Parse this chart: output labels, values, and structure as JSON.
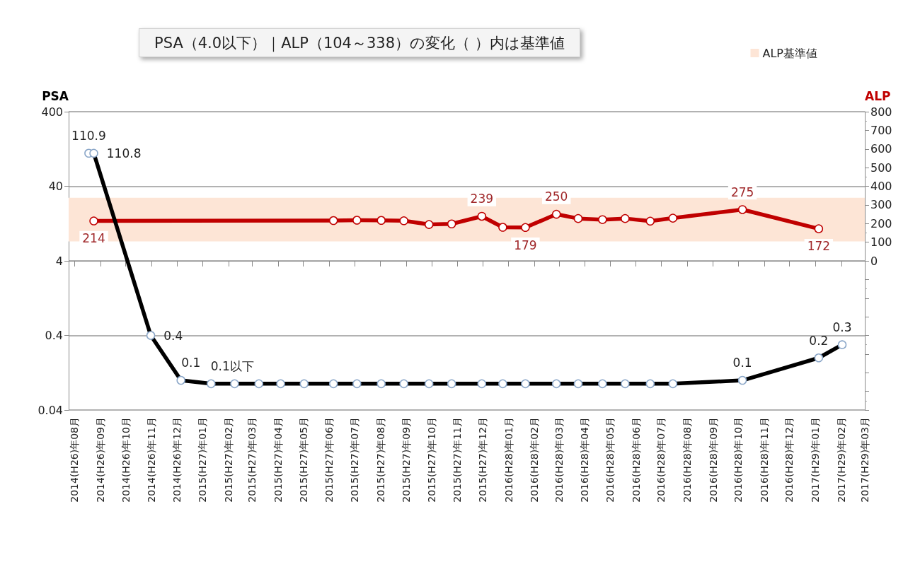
{
  "chart_data": {
    "type": "line",
    "title": "PSA（4.0以下）｜ALP（104～338）の変化（ ）内は基準値",
    "xlim": [
      "2014-07-25",
      "2017-03-01"
    ],
    "xticks": [
      {
        "value": "2014-08-01",
        "label": "2014(H26)年08月"
      },
      {
        "value": "2014-09-01",
        "label": "2014(H26)年09月"
      },
      {
        "value": "2014-10-01",
        "label": "2014(H26)年10月"
      },
      {
        "value": "2014-11-01",
        "label": "2014(H26)年11月"
      },
      {
        "value": "2014-12-01",
        "label": "2014(H26)年12月"
      },
      {
        "value": "2015-01-01",
        "label": "2015(H27)年01月"
      },
      {
        "value": "2015-02-01",
        "label": "2015(H27)年02月"
      },
      {
        "value": "2015-03-01",
        "label": "2015(H27)年03月"
      },
      {
        "value": "2015-04-01",
        "label": "2015(H27)年04月"
      },
      {
        "value": "2015-05-01",
        "label": "2015(H27)年05月"
      },
      {
        "value": "2015-06-01",
        "label": "2015(H27)年06月"
      },
      {
        "value": "2015-07-01",
        "label": "2015(H27)年07月"
      },
      {
        "value": "2015-08-01",
        "label": "2015(H27)年08月"
      },
      {
        "value": "2015-09-01",
        "label": "2015(H27)年09月"
      },
      {
        "value": "2015-10-01",
        "label": "2015(H27)年10月"
      },
      {
        "value": "2015-11-01",
        "label": "2015(H27)年11月"
      },
      {
        "value": "2015-12-01",
        "label": "2015(H27)年12月"
      },
      {
        "value": "2016-01-01",
        "label": "2016(H28)年01月"
      },
      {
        "value": "2016-02-01",
        "label": "2016(H28)年02月"
      },
      {
        "value": "2016-03-01",
        "label": "2016(H28)年03月"
      },
      {
        "value": "2016-04-01",
        "label": "2016(H28)年04月"
      },
      {
        "value": "2016-05-01",
        "label": "2016(H28)年05月"
      },
      {
        "value": "2016-06-01",
        "label": "2016(H28)年06月"
      },
      {
        "value": "2016-07-01",
        "label": "2016(H28)年07月"
      },
      {
        "value": "2016-08-01",
        "label": "2016(H28)年08月"
      },
      {
        "value": "2016-09-01",
        "label": "2016(H28)年09月"
      },
      {
        "value": "2016-10-01",
        "label": "2016(H28)年10月"
      },
      {
        "value": "2016-11-01",
        "label": "2016(H28)年11月"
      },
      {
        "value": "2016-12-01",
        "label": "2016(H28)年12月"
      },
      {
        "value": "2017-01-01",
        "label": "2017(H29)年01月"
      },
      {
        "value": "2017-02-01",
        "label": "2017(H29)年02月"
      },
      {
        "value": "2017-03-01",
        "label": "2017(H29)年03月"
      }
    ],
    "log": "y",
    "ylim": [
      0.04,
      400
    ],
    "yticks": [
      0.04,
      0.4,
      4,
      40,
      400
    ],
    "y2lim": [
      -800,
      800
    ],
    "y2ticks": [
      {
        "value": -800,
        "label": null
      },
      {
        "value": -700,
        "label": null
      },
      {
        "value": -600,
        "label": null
      },
      {
        "value": -500,
        "label": null
      },
      {
        "value": -400,
        "label": null
      },
      {
        "value": -300,
        "label": null
      },
      {
        "value": -200,
        "label": null
      },
      {
        "value": -100,
        "label": null
      },
      0,
      100,
      200,
      300,
      400,
      500,
      600,
      700,
      800
    ],
    "grid": "y",
    "marker": "circle",
    "legend": "top right",
    "bands": [
      {
        "axis": "y2",
        "from": 104,
        "to": 338,
        "label": "ALP基準値",
        "color": "#fde5d6"
      }
    ],
    "series": [
      {
        "name": "PSA",
        "color": "#000000",
        "x": [
          "2014-08-18",
          "2014-08-24",
          "2014-10-31",
          "2014-12-06",
          "2015-01-11",
          "2015-02-08",
          "2015-03-09",
          "2015-04-04",
          "2015-05-02",
          "2015-06-06",
          "2015-07-04",
          "2015-08-02",
          "2015-08-29",
          "2015-09-28",
          "2015-10-25",
          "2015-11-30",
          "2015-12-25",
          "2016-01-21",
          "2016-02-27",
          "2016-03-24",
          "2016-04-22",
          "2016-05-19",
          "2016-06-18",
          "2016-07-15",
          "2016-10-06",
          "2017-01-05",
          "2017-02-02"
        ],
        "values": [
          110.9,
          110.8,
          0.4,
          0.1,
          0.09,
          0.09,
          0.09,
          0.09,
          0.09,
          0.09,
          0.09,
          0.09,
          0.09,
          0.09,
          0.09,
          0.09,
          0.09,
          0.09,
          0.09,
          0.09,
          0.09,
          0.09,
          0.09,
          0.09,
          0.1,
          0.2,
          0.3
        ],
        "value_labels": [
          "110.9",
          "110.8",
          "0.4",
          "0.1",
          "0.1以下",
          null,
          null,
          null,
          null,
          null,
          null,
          null,
          null,
          null,
          null,
          null,
          null,
          null,
          null,
          null,
          null,
          null,
          null,
          null,
          "0.1",
          "0.2",
          "0.3"
        ]
      },
      {
        "name": "ALP",
        "color": "#c00000",
        "axis": "y2",
        "x": [
          "2014-08-24",
          "2015-06-06",
          "2015-07-04",
          "2015-08-02",
          "2015-08-29",
          "2015-09-28",
          "2015-10-25",
          "2015-11-30",
          "2015-12-25",
          "2016-01-21",
          "2016-02-27",
          "2016-03-24",
          "2016-04-22",
          "2016-05-19",
          "2016-06-18",
          "2016-07-15",
          "2016-10-06",
          "2017-01-05"
        ],
        "values": [
          214,
          216,
          218,
          217,
          215,
          195,
          198,
          239,
          180,
          179,
          250,
          227,
          221,
          227,
          213,
          229,
          275,
          172
        ],
        "value_labels": [
          "214",
          null,
          null,
          null,
          null,
          null,
          null,
          "239",
          null,
          "179",
          "250",
          null,
          null,
          null,
          null,
          null,
          "275",
          "172"
        ]
      }
    ]
  }
}
